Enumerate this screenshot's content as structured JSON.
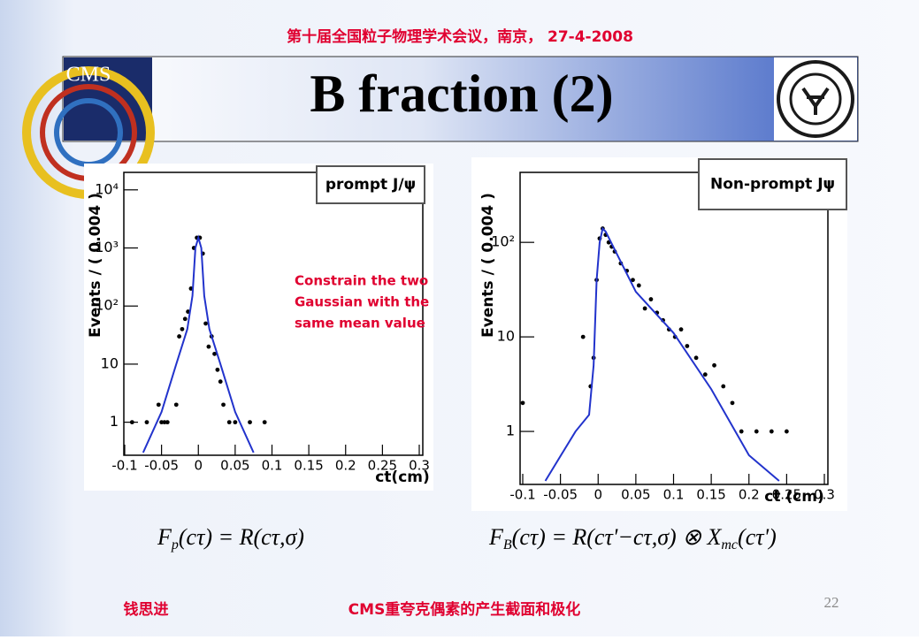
{
  "header": {
    "conference": "第十届全国粒子物理学术会议，南京， 27-4-2008",
    "title": "B fraction (2)"
  },
  "chart_data": [
    {
      "type": "scatter",
      "log_y": true,
      "xlabel": "ct(cm)",
      "ylabel": "Events / ( 0.004 )",
      "xlim": [
        -0.1,
        0.3
      ],
      "ylim": [
        0.27,
        20000
      ],
      "xticks": [
        -0.1,
        -0.05,
        0,
        0.05,
        0.1,
        0.15,
        0.2,
        0.25,
        0.3
      ],
      "yticks": [
        1,
        10,
        {
          "value": 100,
          "label": "10²"
        },
        {
          "value": 1000,
          "label": "10³"
        },
        {
          "value": 10000,
          "label": "10⁴"
        }
      ],
      "annotation": [
        "Constrain the two",
        "Gaussian with the",
        "same mean value"
      ],
      "series": [
        {
          "name": "prompt J/ψ",
          "color": "#000000",
          "style": "points",
          "x": [
            -0.09,
            -0.07,
            -0.054,
            -0.05,
            -0.046,
            -0.042,
            -0.03,
            -0.026,
            -0.022,
            -0.018,
            -0.014,
            -0.01,
            -0.006,
            -0.002,
            0.002,
            0.006,
            0.01,
            0.014,
            0.018,
            0.022,
            0.026,
            0.03,
            0.034,
            0.042,
            0.05,
            0.07,
            0.09
          ],
          "values": [
            1,
            1,
            2,
            1,
            1,
            1,
            2,
            30,
            40,
            60,
            80,
            200,
            1000,
            1500,
            1500,
            800,
            50,
            20,
            30,
            15,
            8,
            5,
            2,
            1,
            1,
            1,
            1
          ]
        },
        {
          "color": "#2233cc",
          "style": "line",
          "x": [
            -0.075,
            -0.05,
            -0.03,
            -0.015,
            -0.008,
            -0.004,
            0,
            0.004,
            0.008,
            0.015,
            0.03,
            0.05,
            0.075
          ],
          "values": [
            0.3,
            1.5,
            10,
            40,
            150,
            1000,
            1500,
            1000,
            150,
            40,
            10,
            1.5,
            0.3
          ]
        }
      ]
    },
    {
      "type": "scatter",
      "log_y": true,
      "xlabel": "ct (cm)",
      "ylabel": "Events / ( 0.004 )",
      "xlim": [
        -0.1,
        0.3
      ],
      "ylim": [
        0.275,
        550
      ],
      "xticks": [
        -0.1,
        -0.05,
        0,
        0.05,
        0.1,
        0.15,
        0.2,
        0.25,
        0.3
      ],
      "yticks": [
        1,
        10,
        {
          "value": 100,
          "label": "10²"
        }
      ],
      "series": [
        {
          "name": "Non-prompt Jψ",
          "color": "#000000",
          "style": "points",
          "x": [
            -0.1,
            -0.02,
            -0.01,
            -0.006,
            -0.002,
            0.002,
            0.006,
            0.01,
            0.014,
            0.018,
            0.022,
            0.03,
            0.038,
            0.046,
            0.054,
            0.062,
            0.07,
            0.078,
            0.086,
            0.094,
            0.102,
            0.11,
            0.118,
            0.13,
            0.142,
            0.154,
            0.166,
            0.178,
            0.19,
            0.21,
            0.23,
            0.25
          ],
          "values": [
            2,
            10,
            3,
            6,
            40,
            110,
            140,
            120,
            100,
            90,
            80,
            60,
            50,
            40,
            35,
            20,
            25,
            18,
            15,
            12,
            10,
            12,
            8,
            6,
            4,
            5,
            3,
            2,
            1,
            1,
            1,
            1
          ]
        },
        {
          "color": "#2233cc",
          "style": "line",
          "x": [
            -0.07,
            -0.03,
            -0.012,
            -0.006,
            -0.002,
            0.002,
            0.006,
            0.01,
            0.02,
            0.05,
            0.1,
            0.15,
            0.2,
            0.24
          ],
          "values": [
            0.3,
            1,
            1.5,
            5,
            40,
            100,
            140,
            130,
            90,
            30,
            11,
            2.8,
            0.56,
            0.3
          ]
        }
      ]
    }
  ],
  "formulas": [
    {
      "parts": [
        {
          "text": "F"
        },
        {
          "text": "p",
          "sub": true
        },
        {
          "text": "(cτ) = R(cτ,σ)"
        }
      ]
    },
    {
      "parts": [
        {
          "text": "F"
        },
        {
          "text": "B",
          "sub": true
        },
        {
          "text": "(cτ) = R(cτ'−cτ,σ) ⊗ X"
        },
        {
          "text": "mc",
          "sub": true
        },
        {
          "text": "(cτ')"
        }
      ]
    }
  ],
  "footer": {
    "author": "钱思进",
    "topic": "CMS重夸克偶素的产生截面和极化",
    "page": "22"
  }
}
